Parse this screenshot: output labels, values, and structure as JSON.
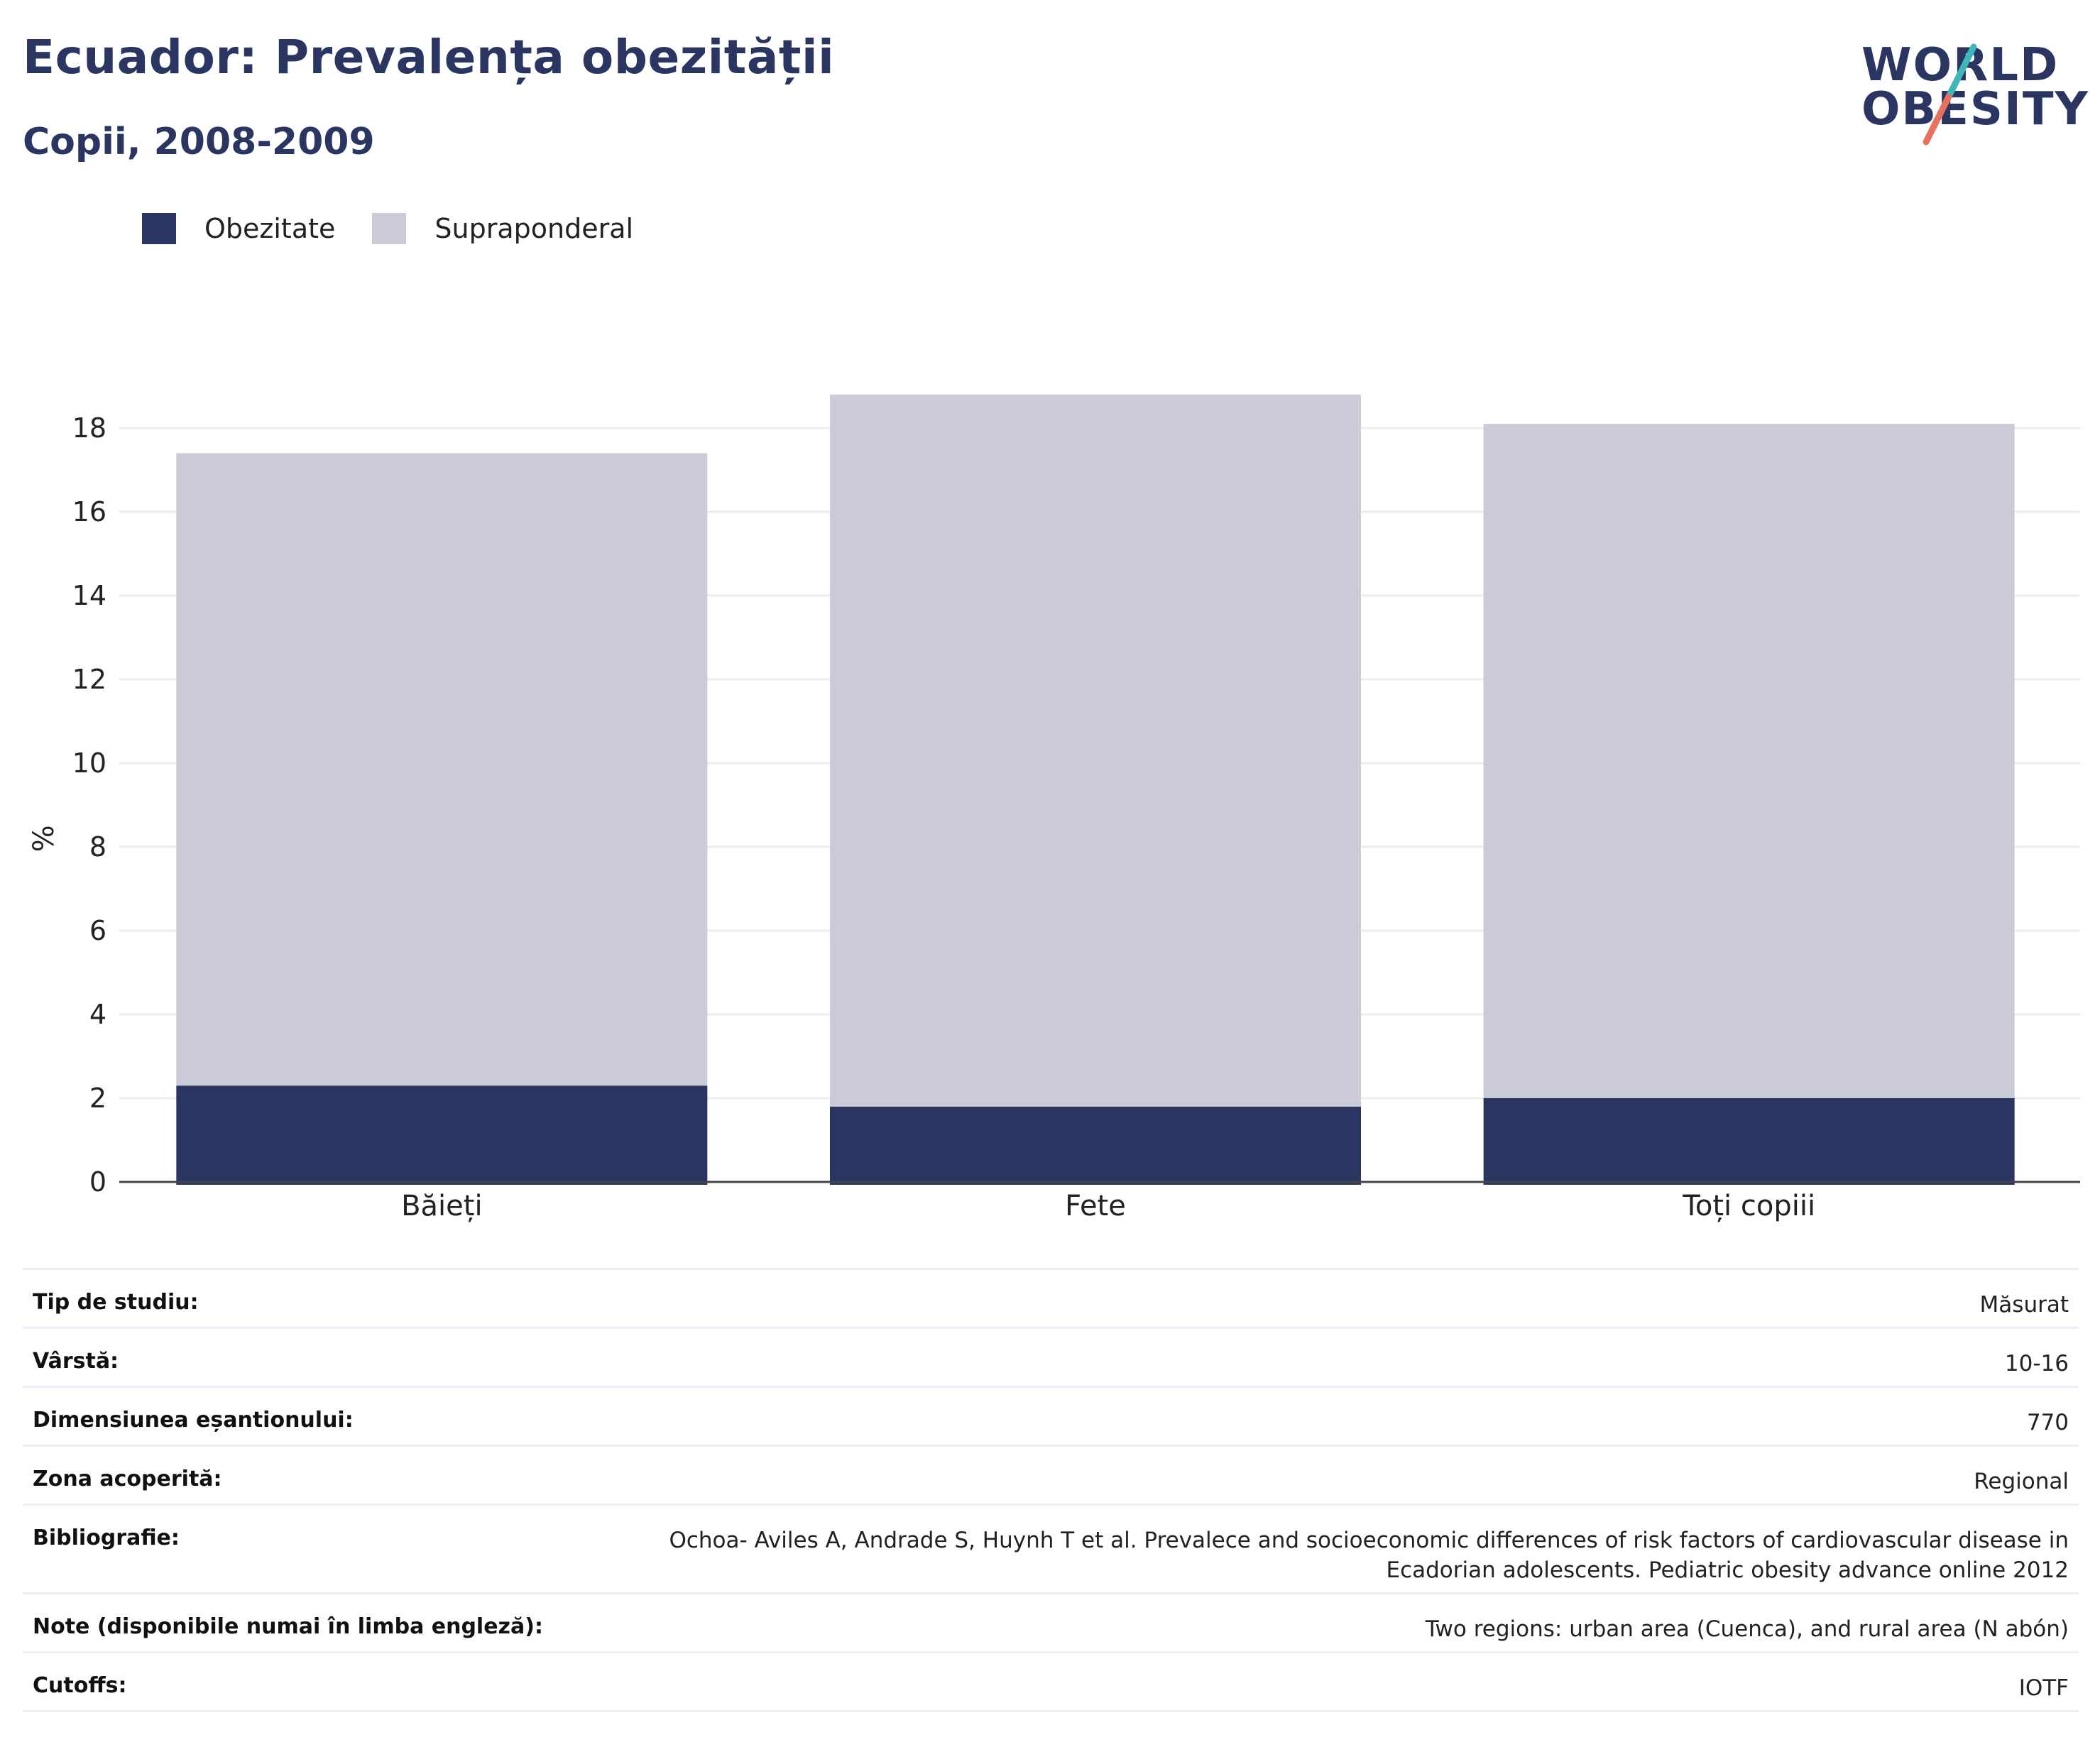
{
  "header": {
    "title": "Ecuador: Prevalența obezității",
    "subtitle": "Copii, 2008-2009"
  },
  "logo": {
    "line1": "WORLD",
    "line2": "OBESITY"
  },
  "colors": {
    "obesity": "#2a3561",
    "overweight": "#cacbd7",
    "grid": "#eceef3",
    "logo_teal": "#3fb7b9",
    "logo_coral": "#e8705f"
  },
  "legend": [
    {
      "label": "Obezitate",
      "color": "#2a3561"
    },
    {
      "label": "Supraponderal",
      "color": "#cacbd7"
    }
  ],
  "chart_data": {
    "type": "bar",
    "stacked": true,
    "categories": [
      "Băieți",
      "Fete",
      "Toți copiii"
    ],
    "series": [
      {
        "name": "Obezitate",
        "values": [
          2.3,
          1.8,
          2.0
        ]
      },
      {
        "name": "Supraponderal",
        "values": [
          15.1,
          17.0,
          16.1
        ]
      }
    ],
    "ylabel": "%",
    "ylim": [
      0,
      19
    ],
    "yticks": [
      0,
      2,
      4,
      6,
      8,
      10,
      12,
      14,
      16,
      18
    ],
    "grid": true,
    "legend_position": "top-left"
  },
  "info": [
    {
      "label": "Tip de studiu:",
      "value": "Măsurat"
    },
    {
      "label": "Vârstă:",
      "value": "10-16"
    },
    {
      "label": "Dimensiunea eșantionului:",
      "value": "770"
    },
    {
      "label": "Zona acoperită:",
      "value": "Regional"
    },
    {
      "label": "Bibliografie:",
      "value_line1": "Ochoa- Aviles A, Andrade S, Huynh T et al. Prevalece and socioeconomic differences of risk factors of cardiovascular disease in",
      "value_line2": "Ecadorian adolescents. Pediatric obesity advance online 2012"
    },
    {
      "label": "Note (disponibile numai în limba engleză):",
      "value": "Two regions: urban area (Cuenca), and rural area (N abón)"
    },
    {
      "label": "Cutoffs:",
      "value": "IOTF"
    }
  ]
}
